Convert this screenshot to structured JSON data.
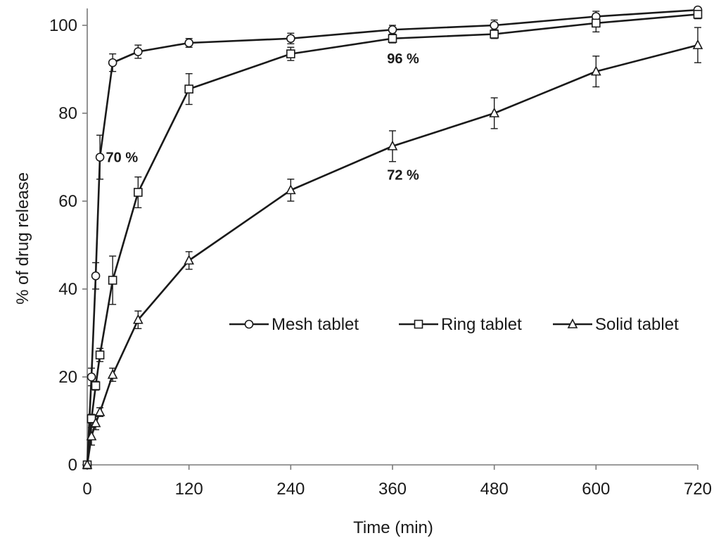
{
  "chart_data": {
    "type": "line",
    "title": "",
    "xlabel": "Time (min)",
    "ylabel": "% of drug release",
    "xlim": [
      0,
      720
    ],
    "ylim": [
      0,
      100
    ],
    "xticks": [
      0,
      120,
      240,
      360,
      480,
      600,
      720
    ],
    "yticks": [
      0,
      20,
      40,
      60,
      80,
      100
    ],
    "grid": false,
    "legend_position": "right",
    "series": [
      {
        "name": "Mesh tablet",
        "marker": "circle",
        "x": [
          0,
          5,
          10,
          15,
          30,
          60,
          120,
          240,
          360,
          480,
          600,
          720
        ],
        "y": [
          0,
          20,
          43,
          70,
          91.5,
          94,
          96,
          97,
          99,
          100,
          102,
          103.5
        ],
        "err": [
          0,
          2,
          3,
          5,
          2,
          1.5,
          1,
          1.2,
          1,
          1.2,
          1.2,
          0.5
        ]
      },
      {
        "name": "Ring tablet",
        "marker": "square",
        "x": [
          0,
          5,
          10,
          15,
          30,
          60,
          120,
          240,
          360,
          480,
          600,
          720
        ],
        "y": [
          0,
          10.5,
          18,
          25,
          42,
          62,
          85.5,
          93.5,
          97,
          98,
          100.5,
          102.5
        ],
        "err": [
          0,
          1,
          1,
          1.5,
          5.5,
          3.5,
          3.5,
          1.5,
          1,
          1,
          2,
          1
        ]
      },
      {
        "name": "Solid tablet",
        "marker": "triangle",
        "x": [
          0,
          5,
          10,
          15,
          30,
          60,
          120,
          240,
          360,
          480,
          600,
          720
        ],
        "y": [
          0,
          6.5,
          9.5,
          12,
          20.5,
          33,
          46.5,
          62.5,
          72.5,
          80,
          89.5,
          95.5
        ],
        "err": [
          0,
          2,
          1.5,
          1,
          1.5,
          2,
          2,
          2.5,
          3.5,
          3.5,
          3.5,
          4
        ]
      }
    ],
    "annotations": [
      {
        "text": "70 %",
        "x": 22,
        "y": 70
      },
      {
        "text": "96 %",
        "x": 348,
        "y": 92.5
      },
      {
        "text": "72 %",
        "x": 348,
        "y": 66
      }
    ]
  }
}
